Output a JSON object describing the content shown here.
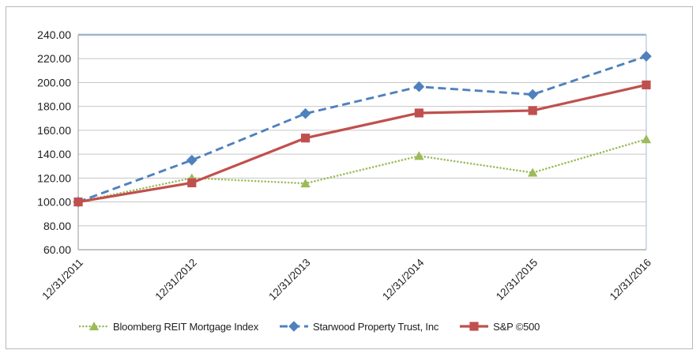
{
  "chart_data": {
    "type": "line",
    "categories": [
      "12/31/2011",
      "12/31/2012",
      "12/31/2013",
      "12/31/2014",
      "12/31/2015",
      "12/31/2016"
    ],
    "series": [
      {
        "name": "Bloomberg REIT Mortgage Index",
        "values": [
          100.0,
          120.0,
          115.5,
          138.5,
          124.5,
          152.5
        ],
        "color": "#9BBB59",
        "marker": "triangle",
        "line_style": "dotted"
      },
      {
        "name": "Starwood Property Trust, Inc",
        "values": [
          100.0,
          135.0,
          174.0,
          196.5,
          190.0,
          222.0
        ],
        "color": "#4F81BD",
        "marker": "diamond",
        "line_style": "dashed"
      },
      {
        "name": "S&P ©500",
        "values": [
          100.0,
          116.0,
          153.5,
          174.5,
          176.5,
          198.0
        ],
        "color": "#C0504D",
        "marker": "square",
        "line_style": "solid"
      }
    ],
    "title": "",
    "xlabel": "",
    "ylabel": "",
    "ylim": [
      60,
      240
    ],
    "y_ticks": [
      "240.00",
      "220.00",
      "200.00",
      "180.00",
      "160.00",
      "140.00",
      "120.00",
      "100.00",
      "80.00",
      "60.00"
    ],
    "grid": true,
    "legend_position": "bottom",
    "x_label_rotation": -45
  },
  "colors": {
    "background": "#FFFFFF",
    "frame_border": "#B7B7B7",
    "grid_line": "#C6C6C6",
    "axis_line": "#A9A9A9",
    "bottom_axis_line": "#C2C2C2",
    "plot_border_top": "#9EB6CE",
    "plot_border_right": "#BCCCE0",
    "tick_text": "#1F1F1F"
  }
}
